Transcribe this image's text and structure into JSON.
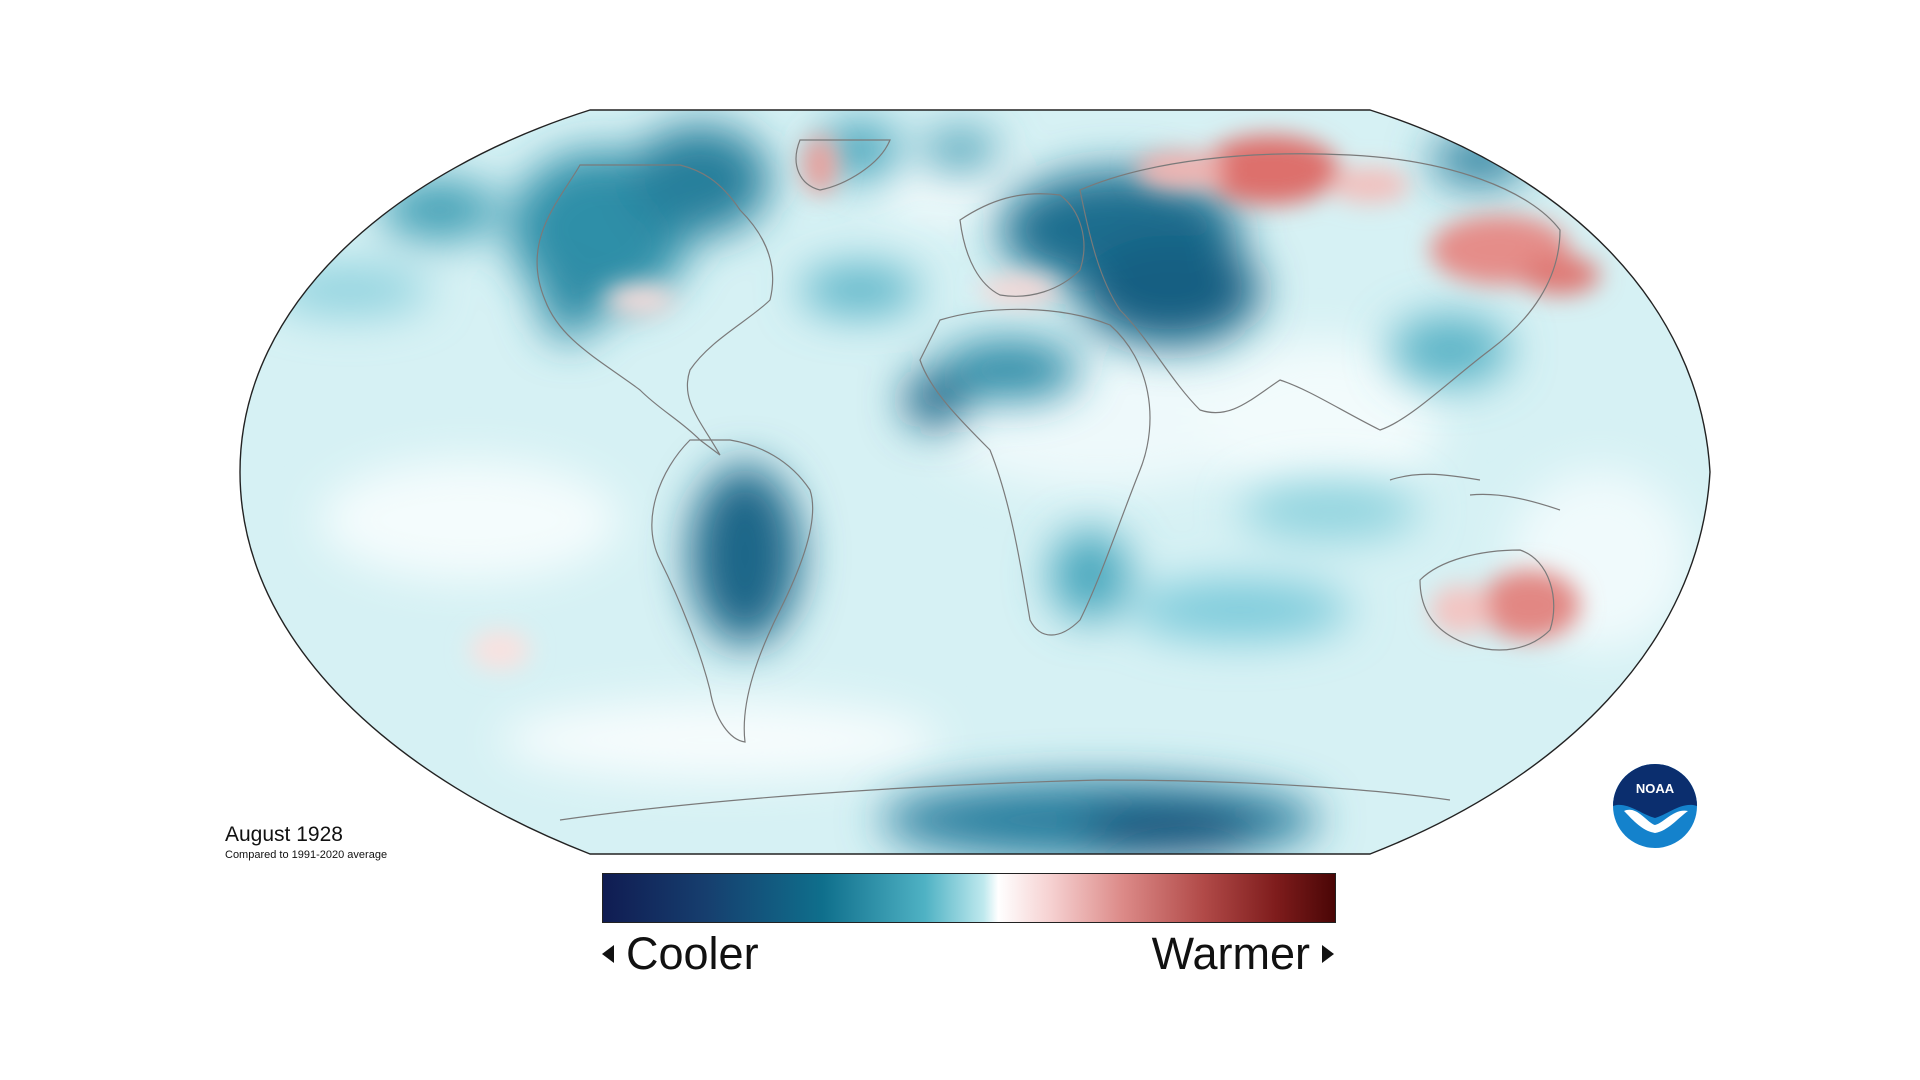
{
  "caption": {
    "title": "August 1928",
    "subtitle": "Compared to 1991-2020 average"
  },
  "colorbar": {
    "left_label": "Cooler",
    "right_label": "Warmer",
    "left_arrow": "triangle-left-icon",
    "right_arrow": "triangle-right-icon",
    "colors": [
      "#101c52",
      "#0f6f8c",
      "#bfe9ee",
      "#ffffff",
      "#f6d2d2",
      "#b14a48",
      "#4a0606"
    ]
  },
  "map": {
    "projection": "Robinson",
    "base_color": "#d6f1f4",
    "cool_color": "#0f5f80",
    "warm_color": "#d9615f",
    "outline_color": "#222222",
    "coastline_color": "#777777"
  },
  "logo": {
    "text": "NOAA",
    "icon": "noaa-logo-icon",
    "color_top": "#0b2e6e",
    "color_bottom": "#1482cc"
  }
}
